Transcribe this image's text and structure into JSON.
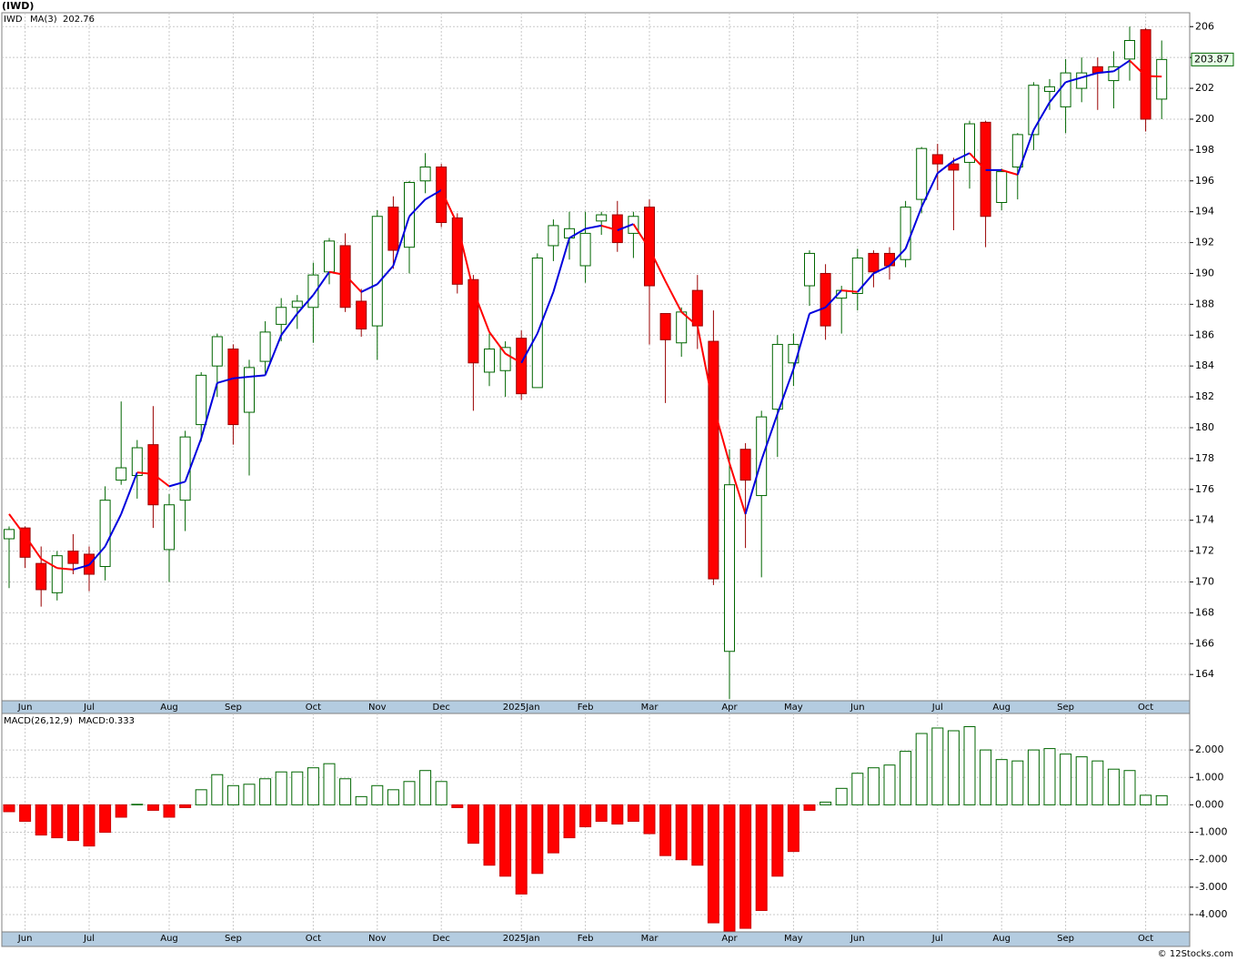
{
  "chart_data": [
    {
      "type": "candlestick",
      "title": "(IWD)",
      "categories": [
        null,
        "Jun",
        null,
        null,
        null,
        "Jul",
        null,
        null,
        null,
        null,
        "Aug",
        null,
        null,
        null,
        "Sep",
        null,
        null,
        null,
        null,
        "Oct",
        null,
        null,
        null,
        "Nov",
        null,
        null,
        null,
        "Dec",
        null,
        null,
        null,
        null,
        "2025Jan",
        null,
        null,
        null,
        "Feb",
        null,
        null,
        null,
        "Mar",
        null,
        null,
        null,
        null,
        "Apr",
        null,
        null,
        null,
        "May",
        null,
        null,
        null,
        "Jun",
        null,
        null,
        null,
        null,
        "Jul",
        null,
        null,
        null,
        "Aug",
        null,
        null,
        null,
        "Sep",
        null,
        null,
        null,
        null,
        "Oct",
        null
      ],
      "series": [
        {
          "name": "IWD",
          "color": "#006600",
          "up_color": "#ffffff",
          "down_color": "#ff0000",
          "open": [
            172.8,
            173.5,
            171.2,
            169.3,
            172.0,
            171.8,
            171.0,
            176.6,
            176.9,
            178.9,
            172.1,
            175.3,
            180.2,
            184.0,
            185.1,
            181.0,
            184.3,
            186.7,
            187.8,
            187.8,
            190.1,
            191.8,
            188.2,
            186.6,
            194.3,
            191.7,
            196.0,
            196.9,
            193.6,
            189.6,
            183.6,
            183.7,
            185.8,
            182.6,
            191.8,
            192.3,
            190.5,
            193.4,
            193.8,
            192.6,
            194.3,
            187.4,
            185.5,
            188.9,
            185.6,
            165.5,
            178.6,
            175.6,
            181.2,
            184.2,
            189.2,
            190.0,
            188.4,
            188.7,
            191.3,
            191.3,
            190.9,
            194.8,
            197.7,
            197.1,
            197.2,
            199.8,
            194.6,
            196.9,
            199.0,
            201.8,
            200.8,
            202.0,
            203.4,
            202.5,
            203.9,
            205.8,
            201.3
          ],
          "high": [
            173.6,
            173.6,
            172.3,
            172.0,
            173.1,
            172.3,
            176.2,
            181.7,
            179.2,
            181.4,
            175.7,
            179.8,
            183.6,
            186.1,
            185.4,
            184.4,
            186.9,
            188.4,
            188.6,
            190.7,
            192.3,
            192.6,
            189.0,
            194.1,
            195.0,
            196.0,
            197.8,
            197.1,
            193.9,
            189.9,
            186.1,
            185.6,
            186.3,
            191.3,
            193.5,
            194.0,
            194.0,
            194.0,
            194.7,
            194.0,
            194.8,
            187.4,
            187.8,
            189.9,
            187.6,
            178.6,
            179.0,
            181.1,
            186.0,
            186.1,
            191.5,
            190.6,
            189.2,
            191.6,
            191.5,
            191.7,
            194.7,
            198.2,
            198.4,
            197.5,
            199.9,
            199.9,
            196.8,
            199.1,
            202.4,
            202.6,
            203.9,
            204.0,
            204.0,
            204.4,
            206.0,
            205.9,
            205.1
          ],
          "low": [
            169.6,
            170.9,
            168.4,
            168.8,
            170.5,
            169.4,
            170.1,
            176.3,
            175.4,
            173.5,
            170.0,
            173.3,
            179.1,
            182.0,
            178.9,
            176.9,
            183.4,
            185.6,
            186.4,
            185.5,
            189.3,
            187.5,
            185.9,
            184.4,
            190.3,
            190.0,
            195.2,
            193.0,
            188.7,
            181.1,
            182.7,
            182.0,
            181.8,
            182.6,
            190.8,
            190.9,
            189.4,
            192.5,
            191.4,
            191.0,
            185.4,
            181.6,
            184.6,
            185.1,
            169.8,
            162.4,
            172.2,
            170.3,
            178.1,
            182.7,
            187.9,
            185.7,
            186.1,
            187.6,
            189.1,
            189.6,
            190.4,
            193.9,
            195.4,
            192.8,
            195.5,
            191.7,
            194.1,
            194.8,
            198.0,
            200.6,
            199.1,
            201.1,
            200.6,
            200.7,
            202.5,
            199.2,
            200.0
          ],
          "close": [
            173.4,
            171.6,
            169.5,
            171.7,
            171.2,
            170.5,
            175.3,
            177.4,
            178.7,
            175.0,
            175.0,
            179.4,
            183.4,
            185.9,
            180.2,
            183.9,
            186.2,
            187.8,
            188.2,
            189.9,
            192.1,
            187.8,
            186.4,
            193.7,
            191.5,
            195.9,
            196.9,
            193.3,
            189.3,
            184.2,
            185.1,
            185.2,
            182.2,
            191.0,
            193.1,
            192.9,
            192.6,
            193.8,
            192.0,
            193.7,
            189.2,
            185.7,
            187.5,
            186.6,
            170.2,
            176.3,
            176.6,
            180.7,
            185.4,
            185.4,
            191.3,
            186.6,
            188.9,
            191.0,
            190.1,
            190.5,
            194.3,
            198.1,
            197.1,
            196.7,
            199.7,
            193.7,
            196.6,
            199.0,
            202.2,
            202.1,
            203.0,
            203.0,
            203.0,
            203.4,
            205.1,
            200.0,
            203.87
          ]
        },
        {
          "name": "MA(3)",
          "type": "line",
          "color": "#0000dd",
          "down_color": "#ff0000",
          "values": [
            174.4,
            173.0,
            171.5,
            170.9,
            170.8,
            171.1,
            172.3,
            174.4,
            177.1,
            177.0,
            176.2,
            176.5,
            179.3,
            182.9,
            183.2,
            183.3,
            183.4,
            186.0,
            187.4,
            188.6,
            190.1,
            189.9,
            188.8,
            189.3,
            190.5,
            193.7,
            194.8,
            195.4,
            193.2,
            188.9,
            186.2,
            184.8,
            184.2,
            186.1,
            188.8,
            192.3,
            192.9,
            193.1,
            192.8,
            193.2,
            191.6,
            189.5,
            187.5,
            186.6,
            181.4,
            177.7,
            174.4,
            177.9,
            180.9,
            183.8,
            187.4,
            187.8,
            188.9,
            188.8,
            190.0,
            190.5,
            191.6,
            194.3,
            196.5,
            197.3,
            197.8,
            196.7,
            196.7,
            196.4,
            199.3,
            201.1,
            202.4,
            202.7,
            203.0,
            203.1,
            203.8,
            202.8,
            202.76
          ]
        }
      ],
      "ylim": [
        162.3,
        206.9
      ],
      "yticks": [
        164,
        166,
        168,
        170,
        172,
        174,
        176,
        178,
        180,
        182,
        184,
        186,
        188,
        190,
        192,
        194,
        196,
        198,
        200,
        202,
        204,
        206
      ],
      "grid": true
    },
    {
      "type": "bar",
      "categories": [
        null,
        "Jun",
        null,
        null,
        null,
        "Jul",
        null,
        null,
        null,
        null,
        "Aug",
        null,
        null,
        null,
        "Sep",
        null,
        null,
        null,
        null,
        "Oct",
        null,
        null,
        null,
        "Nov",
        null,
        null,
        null,
        "Dec",
        null,
        null,
        null,
        null,
        "2025Jan",
        null,
        null,
        null,
        "Feb",
        null,
        null,
        null,
        "Mar",
        null,
        null,
        null,
        null,
        "Apr",
        null,
        null,
        null,
        "May",
        null,
        null,
        null,
        "Jun",
        null,
        null,
        null,
        null,
        "Jul",
        null,
        null,
        null,
        "Aug",
        null,
        null,
        null,
        "Sep",
        null,
        null,
        null,
        null,
        "Oct",
        null
      ],
      "series": [
        {
          "name": "MACD(26,12,9)",
          "color": "#006600",
          "down_color": "#ff0000",
          "values": [
            -0.25,
            -0.6,
            -1.1,
            -1.2,
            -1.3,
            -1.5,
            -1.0,
            -0.45,
            0.02,
            -0.2,
            -0.45,
            -0.1,
            0.55,
            1.1,
            0.7,
            0.75,
            0.95,
            1.2,
            1.2,
            1.35,
            1.5,
            0.95,
            0.3,
            0.7,
            0.55,
            0.85,
            1.25,
            0.85,
            -0.1,
            -1.4,
            -2.2,
            -2.6,
            -3.25,
            -2.5,
            -1.75,
            -1.2,
            -0.8,
            -0.6,
            -0.7,
            -0.6,
            -1.05,
            -1.85,
            -2.0,
            -2.2,
            -4.3,
            -4.6,
            -4.5,
            -3.85,
            -2.6,
            -1.7,
            -0.2,
            0.1,
            0.6,
            1.15,
            1.35,
            1.45,
            1.95,
            2.6,
            2.8,
            2.7,
            2.85,
            2.0,
            1.65,
            1.6,
            2.0,
            2.05,
            1.85,
            1.75,
            1.6,
            1.3,
            1.25,
            0.35,
            0.333
          ]
        }
      ],
      "current_label": "MACD:0.333",
      "ylim": [
        -4.63,
        3.33
      ],
      "yticks": [
        {
          "value": 2,
          "label": "2.000"
        },
        {
          "value": 1,
          "label": "1.000"
        },
        {
          "value": 0,
          "label": "0.000"
        },
        {
          "value": -1,
          "label": "-1.000"
        },
        {
          "value": -2,
          "label": "-2.000"
        },
        {
          "value": -3,
          "label": "-3.000"
        },
        {
          "value": -4,
          "label": "-4.000"
        }
      ],
      "grid": true
    }
  ],
  "footer": "© 12Stocks.com"
}
